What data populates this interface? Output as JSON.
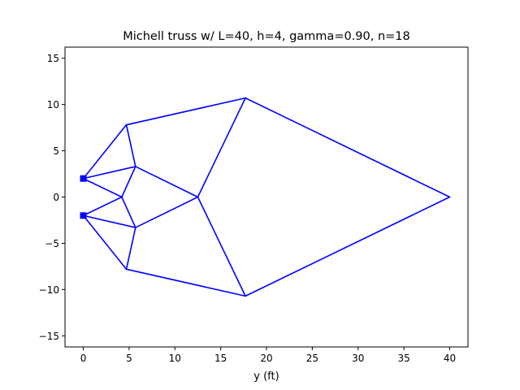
{
  "chart_data": {
    "type": "line",
    "title": "Michell truss w/ L=40, h=4, gamma=0.90, n=18",
    "xlabel": "y (ft)",
    "ylabel": "",
    "xlim": [
      -2,
      42
    ],
    "ylim": [
      -16.2,
      16.2
    ],
    "grid": false,
    "xticks": [
      0,
      5,
      10,
      15,
      20,
      25,
      30,
      35,
      40
    ],
    "yticks": [
      -15,
      -10,
      -5,
      0,
      5,
      10,
      15
    ],
    "line_color": "#0000ff",
    "nodes": {
      "s1": [
        0,
        2
      ],
      "s2": [
        0,
        -2
      ],
      "a1": [
        4.7,
        7.8
      ],
      "a2": [
        4.7,
        -7.8
      ],
      "b1": [
        5.7,
        3.3
      ],
      "b2": [
        5.7,
        -3.3
      ],
      "c": [
        4.2,
        0
      ],
      "d": [
        12.5,
        0
      ],
      "e1": [
        17.7,
        10.7
      ],
      "e2": [
        17.7,
        -10.7
      ],
      "t": [
        40,
        0
      ]
    },
    "members": [
      [
        "s1",
        "a1"
      ],
      [
        "s1",
        "b1"
      ],
      [
        "s1",
        "c"
      ],
      [
        "s2",
        "a2"
      ],
      [
        "s2",
        "b2"
      ],
      [
        "s2",
        "c"
      ],
      [
        "a1",
        "b1"
      ],
      [
        "a2",
        "b2"
      ],
      [
        "c",
        "b1"
      ],
      [
        "c",
        "b2"
      ],
      [
        "a1",
        "e1"
      ],
      [
        "a2",
        "e2"
      ],
      [
        "b1",
        "d"
      ],
      [
        "b2",
        "d"
      ],
      [
        "d",
        "e1"
      ],
      [
        "d",
        "e2"
      ],
      [
        "e1",
        "t"
      ],
      [
        "e2",
        "t"
      ]
    ],
    "supports": [
      "s1",
      "s2"
    ]
  }
}
